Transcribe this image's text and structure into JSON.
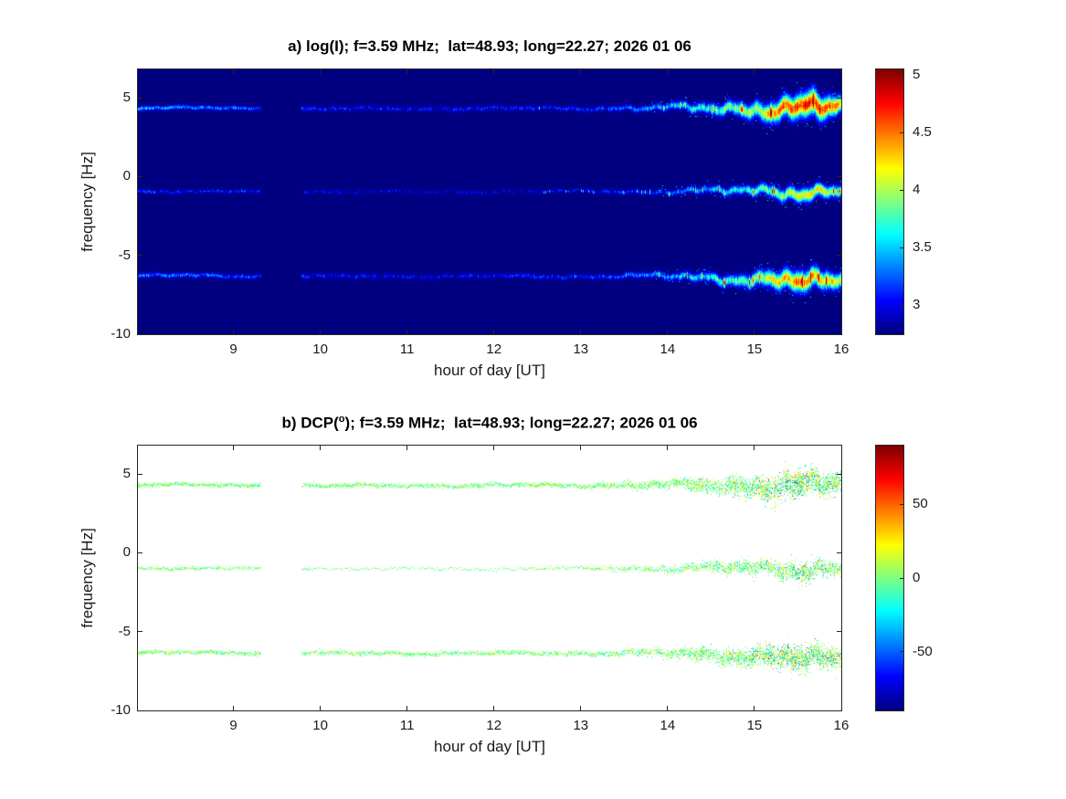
{
  "figure": {
    "background": "#ffffff"
  },
  "chart_data": [
    {
      "type": "heatmap",
      "style": "filled",
      "panel_label": "a",
      "title_parts": [
        {
          "text": "a) log(I); f=3.59 MHz;  lat=48.93; long=22.27; 2026 01 06"
        }
      ],
      "xlabel": "hour of day [UT]",
      "ylabel": "frequency [Hz]",
      "xlim": [
        7.9,
        16
      ],
      "ylim": [
        -10,
        6.8
      ],
      "xticks": [
        9,
        10,
        11,
        12,
        13,
        14,
        15,
        16
      ],
      "yticks": [
        5,
        0,
        -5,
        -10
      ],
      "colormap": "jet",
      "value_range": [
        2.75,
        5.05
      ],
      "colorbar_ticks": [
        5,
        4.5,
        4,
        3.5,
        3
      ],
      "gap_hours": [
        9.32,
        9.78
      ],
      "traces": [
        {
          "name": "upper-doppler-trace",
          "base_freq": 4.35,
          "seed": 11,
          "intensity_profile": [
            [
              7.9,
              3.45
            ],
            [
              8.8,
              3.3
            ],
            [
              9.3,
              3.2
            ],
            [
              10,
              3.05
            ],
            [
              11,
              2.98
            ],
            [
              12,
              3.02
            ],
            [
              13,
              3.1
            ],
            [
              13.8,
              3.3
            ],
            [
              14.4,
              3.65
            ],
            [
              15,
              4.05
            ],
            [
              15.35,
              4.55
            ],
            [
              15.7,
              4.75
            ],
            [
              16,
              4.35
            ]
          ],
          "wiggle_profile": [
            [
              7.9,
              0.08
            ],
            [
              12,
              0.08
            ],
            [
              13.5,
              0.12
            ],
            [
              14.2,
              0.22
            ],
            [
              14.8,
              0.32
            ],
            [
              15.3,
              0.42
            ],
            [
              15.7,
              0.5
            ],
            [
              16,
              0.38
            ]
          ],
          "halfwidth_profile": [
            [
              7.9,
              0.08
            ],
            [
              13,
              0.08
            ],
            [
              14,
              0.13
            ],
            [
              14.8,
              0.25
            ],
            [
              15.3,
              0.4
            ],
            [
              15.7,
              0.5
            ],
            [
              16,
              0.32
            ]
          ],
          "drift_profile": [
            [
              7.9,
              0.05
            ],
            [
              10,
              -0.03
            ],
            [
              12,
              0
            ],
            [
              14,
              0.02
            ],
            [
              15,
              0
            ],
            [
              16,
              0.05
            ]
          ]
        },
        {
          "name": "middle-doppler-trace",
          "base_freq": -0.9,
          "seed": 29,
          "intensity_profile": [
            [
              7.9,
              3.15
            ],
            [
              9,
              3.05
            ],
            [
              9.3,
              3.0
            ],
            [
              10,
              2.88
            ],
            [
              12,
              2.88
            ],
            [
              13,
              2.98
            ],
            [
              13.8,
              3.12
            ],
            [
              14.5,
              3.4
            ],
            [
              15.1,
              3.8
            ],
            [
              15.6,
              4.25
            ],
            [
              16,
              3.95
            ]
          ],
          "wiggle_profile": [
            [
              7.9,
              0.06
            ],
            [
              12,
              0.07
            ],
            [
              13.5,
              0.1
            ],
            [
              14.3,
              0.18
            ],
            [
              15,
              0.28
            ],
            [
              15.6,
              0.38
            ],
            [
              16,
              0.3
            ]
          ],
          "halfwidth_profile": [
            [
              7.9,
              0.06
            ],
            [
              13,
              0.06
            ],
            [
              14,
              0.1
            ],
            [
              15,
              0.18
            ],
            [
              15.6,
              0.28
            ],
            [
              16,
              0.2
            ]
          ],
          "drift_profile": [
            [
              7.9,
              0
            ],
            [
              12,
              -0.05
            ],
            [
              14,
              0
            ],
            [
              16,
              0
            ]
          ]
        },
        {
          "name": "lower-doppler-trace",
          "base_freq": -6.3,
          "seed": 47,
          "intensity_profile": [
            [
              7.9,
              3.35
            ],
            [
              8.8,
              3.25
            ],
            [
              9.3,
              3.15
            ],
            [
              10,
              3.0
            ],
            [
              11,
              2.95
            ],
            [
              12,
              3.0
            ],
            [
              13,
              3.08
            ],
            [
              13.8,
              3.28
            ],
            [
              14.5,
              3.6
            ],
            [
              15.1,
              4.0
            ],
            [
              15.55,
              4.55
            ],
            [
              16,
              4.15
            ]
          ],
          "wiggle_profile": [
            [
              7.9,
              0.08
            ],
            [
              12,
              0.08
            ],
            [
              13.5,
              0.12
            ],
            [
              14.3,
              0.22
            ],
            [
              15,
              0.32
            ],
            [
              15.6,
              0.45
            ],
            [
              16,
              0.35
            ]
          ],
          "halfwidth_profile": [
            [
              7.9,
              0.08
            ],
            [
              13,
              0.08
            ],
            [
              14,
              0.12
            ],
            [
              14.8,
              0.22
            ],
            [
              15.5,
              0.4
            ],
            [
              16,
              0.3
            ]
          ],
          "drift_profile": [
            [
              7.9,
              0.05
            ],
            [
              10,
              0
            ],
            [
              14,
              0
            ],
            [
              15,
              -0.15
            ],
            [
              15.8,
              -0.45
            ],
            [
              16,
              -0.5
            ]
          ]
        }
      ]
    },
    {
      "type": "heatmap",
      "style": "scatter",
      "panel_label": "b",
      "title_parts": [
        {
          "text": "b) DCP("
        },
        {
          "text": "o",
          "sup": true
        },
        {
          "text": "); f=3.59 MHz;  lat=48.93; long=22.27; 2026 01 06"
        }
      ],
      "xlabel": "hour of day [UT]",
      "ylabel": "frequency [Hz]",
      "xlim": [
        7.9,
        16
      ],
      "ylim": [
        -10,
        6.8
      ],
      "xticks": [
        9,
        10,
        11,
        12,
        13,
        14,
        15,
        16
      ],
      "yticks": [
        5,
        0,
        -5,
        -10
      ],
      "colormap": "jet",
      "value_range": [
        -90,
        90
      ],
      "colorbar_ticks": [
        50,
        0,
        -50
      ],
      "gap_hours": [
        9.32,
        9.78
      ],
      "traces": [
        {
          "name": "upper-doppler-trace",
          "base_freq": 4.3,
          "seed": 11,
          "wiggle_profile": [
            [
              7.9,
              0.08
            ],
            [
              12,
              0.08
            ],
            [
              13.5,
              0.12
            ],
            [
              14.2,
              0.22
            ],
            [
              14.8,
              0.32
            ],
            [
              15.3,
              0.42
            ],
            [
              15.7,
              0.5
            ],
            [
              16,
              0.38
            ]
          ],
          "drift_profile": [
            [
              7.9,
              0.05
            ],
            [
              10,
              -0.03
            ],
            [
              12,
              0
            ],
            [
              14,
              0.02
            ],
            [
              15,
              0
            ],
            [
              16,
              0.05
            ]
          ],
          "spread_profile": [
            [
              7.9,
              0.12
            ],
            [
              13,
              0.14
            ],
            [
              14,
              0.3
            ],
            [
              14.8,
              0.6
            ],
            [
              15.4,
              0.9
            ],
            [
              16,
              0.6
            ]
          ],
          "density_profile": [
            [
              7.9,
              4
            ],
            [
              13,
              4
            ],
            [
              13.8,
              6
            ],
            [
              14.5,
              10
            ],
            [
              15,
              16
            ],
            [
              15.6,
              22
            ],
            [
              16,
              13
            ]
          ],
          "value_sigma_profile": [
            [
              7.9,
              9
            ],
            [
              13,
              10
            ],
            [
              14,
              14
            ],
            [
              14.8,
              20
            ],
            [
              15.5,
              26
            ],
            [
              16,
              20
            ]
          ]
        },
        {
          "name": "middle-doppler-trace",
          "base_freq": -0.95,
          "seed": 29,
          "wiggle_profile": [
            [
              7.9,
              0.06
            ],
            [
              12,
              0.07
            ],
            [
              13.5,
              0.1
            ],
            [
              14.3,
              0.18
            ],
            [
              15,
              0.28
            ],
            [
              15.6,
              0.38
            ],
            [
              16,
              0.3
            ]
          ],
          "drift_profile": [
            [
              7.9,
              0
            ],
            [
              12,
              -0.05
            ],
            [
              14,
              0
            ],
            [
              16,
              0
            ]
          ],
          "spread_profile": [
            [
              7.9,
              0.1
            ],
            [
              13,
              0.12
            ],
            [
              14,
              0.22
            ],
            [
              15,
              0.45
            ],
            [
              15.6,
              0.65
            ],
            [
              16,
              0.45
            ]
          ],
          "density_profile": [
            [
              7.9,
              3
            ],
            [
              9.5,
              2
            ],
            [
              10,
              1
            ],
            [
              12,
              0.9
            ],
            [
              13,
              1.6
            ],
            [
              14,
              4
            ],
            [
              15,
              9
            ],
            [
              15.6,
              14
            ],
            [
              16,
              9
            ]
          ],
          "value_sigma_profile": [
            [
              7.9,
              8
            ],
            [
              13,
              9
            ],
            [
              14,
              13
            ],
            [
              15,
              18
            ],
            [
              15.6,
              24
            ],
            [
              16,
              18
            ]
          ]
        },
        {
          "name": "lower-doppler-trace",
          "base_freq": -6.35,
          "seed": 47,
          "wiggle_profile": [
            [
              7.9,
              0.08
            ],
            [
              12,
              0.08
            ],
            [
              13.5,
              0.12
            ],
            [
              14.3,
              0.22
            ],
            [
              15,
              0.32
            ],
            [
              15.6,
              0.45
            ],
            [
              16,
              0.35
            ]
          ],
          "drift_profile": [
            [
              7.9,
              0.05
            ],
            [
              10,
              0
            ],
            [
              14,
              0
            ],
            [
              15,
              -0.15
            ],
            [
              15.8,
              -0.45
            ],
            [
              16,
              -0.5
            ]
          ],
          "spread_profile": [
            [
              7.9,
              0.12
            ],
            [
              13,
              0.14
            ],
            [
              14,
              0.28
            ],
            [
              14.8,
              0.55
            ],
            [
              15.5,
              0.85
            ],
            [
              16,
              0.6
            ]
          ],
          "density_profile": [
            [
              7.9,
              4
            ],
            [
              13,
              3.5
            ],
            [
              13.8,
              5
            ],
            [
              14.5,
              9
            ],
            [
              15,
              14
            ],
            [
              15.6,
              20
            ],
            [
              16,
              12
            ]
          ],
          "value_sigma_profile": [
            [
              7.9,
              9
            ],
            [
              13,
              10
            ],
            [
              14,
              14
            ],
            [
              14.8,
              20
            ],
            [
              15.5,
              26
            ],
            [
              16,
              20
            ]
          ]
        }
      ]
    }
  ]
}
